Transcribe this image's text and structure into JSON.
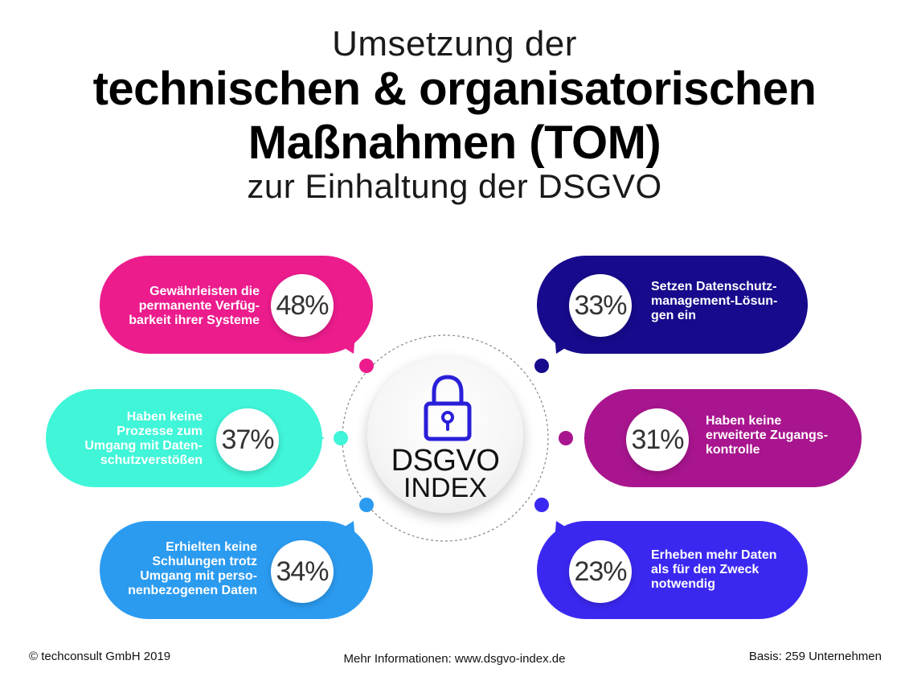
{
  "title": {
    "line1": "Umsetzung der",
    "line2": "technischen & organisatorischen",
    "line3": "Maßnahmen (TOM)",
    "line4": "zur Einhaltung der DSGVO"
  },
  "logo": {
    "line1": "DSGVO",
    "line2": "INDEX",
    "icon": "padlock-icon"
  },
  "chart_data": {
    "type": "infographic",
    "unit": "%",
    "items": [
      {
        "value": 48,
        "value_label": "48%",
        "label": "Gewährleisten die\npermanente Verfüg-\nbarkeit ihrer Systeme",
        "color": "#EC1C8D"
      },
      {
        "value": 37,
        "value_label": "37%",
        "label": "Haben keine\nProzesse zum\nUmgang mit Daten-\nschutzverstößen",
        "color": "#40F5D8"
      },
      {
        "value": 34,
        "value_label": "34%",
        "label": "Erhielten keine\nSchulungen trotz\nUmgang mit perso-\nnenbezogenen Daten",
        "color": "#2B9BF0"
      },
      {
        "value": 33,
        "value_label": "33%",
        "label": "Setzen Datenschutz-\nmanagement-Lösun-\ngen ein",
        "color": "#170A8C"
      },
      {
        "value": 31,
        "value_label": "31%",
        "label": "Haben keine\nerweiterte Zugangs-\nkontrolle",
        "color": "#A8158E"
      },
      {
        "value": 23,
        "value_label": "23%",
        "label": "Erheben mehr Daten\nals für den Zweck\nnotwendig",
        "color": "#3B28F0"
      }
    ]
  },
  "footer": {
    "copyright": "© techconsult GmbH 2019",
    "info": "Mehr Informationen: www.dsgvo-index.de",
    "basis": "Basis: 259 Unternehmen"
  },
  "colors": {
    "lock": "#2A1FD9"
  }
}
